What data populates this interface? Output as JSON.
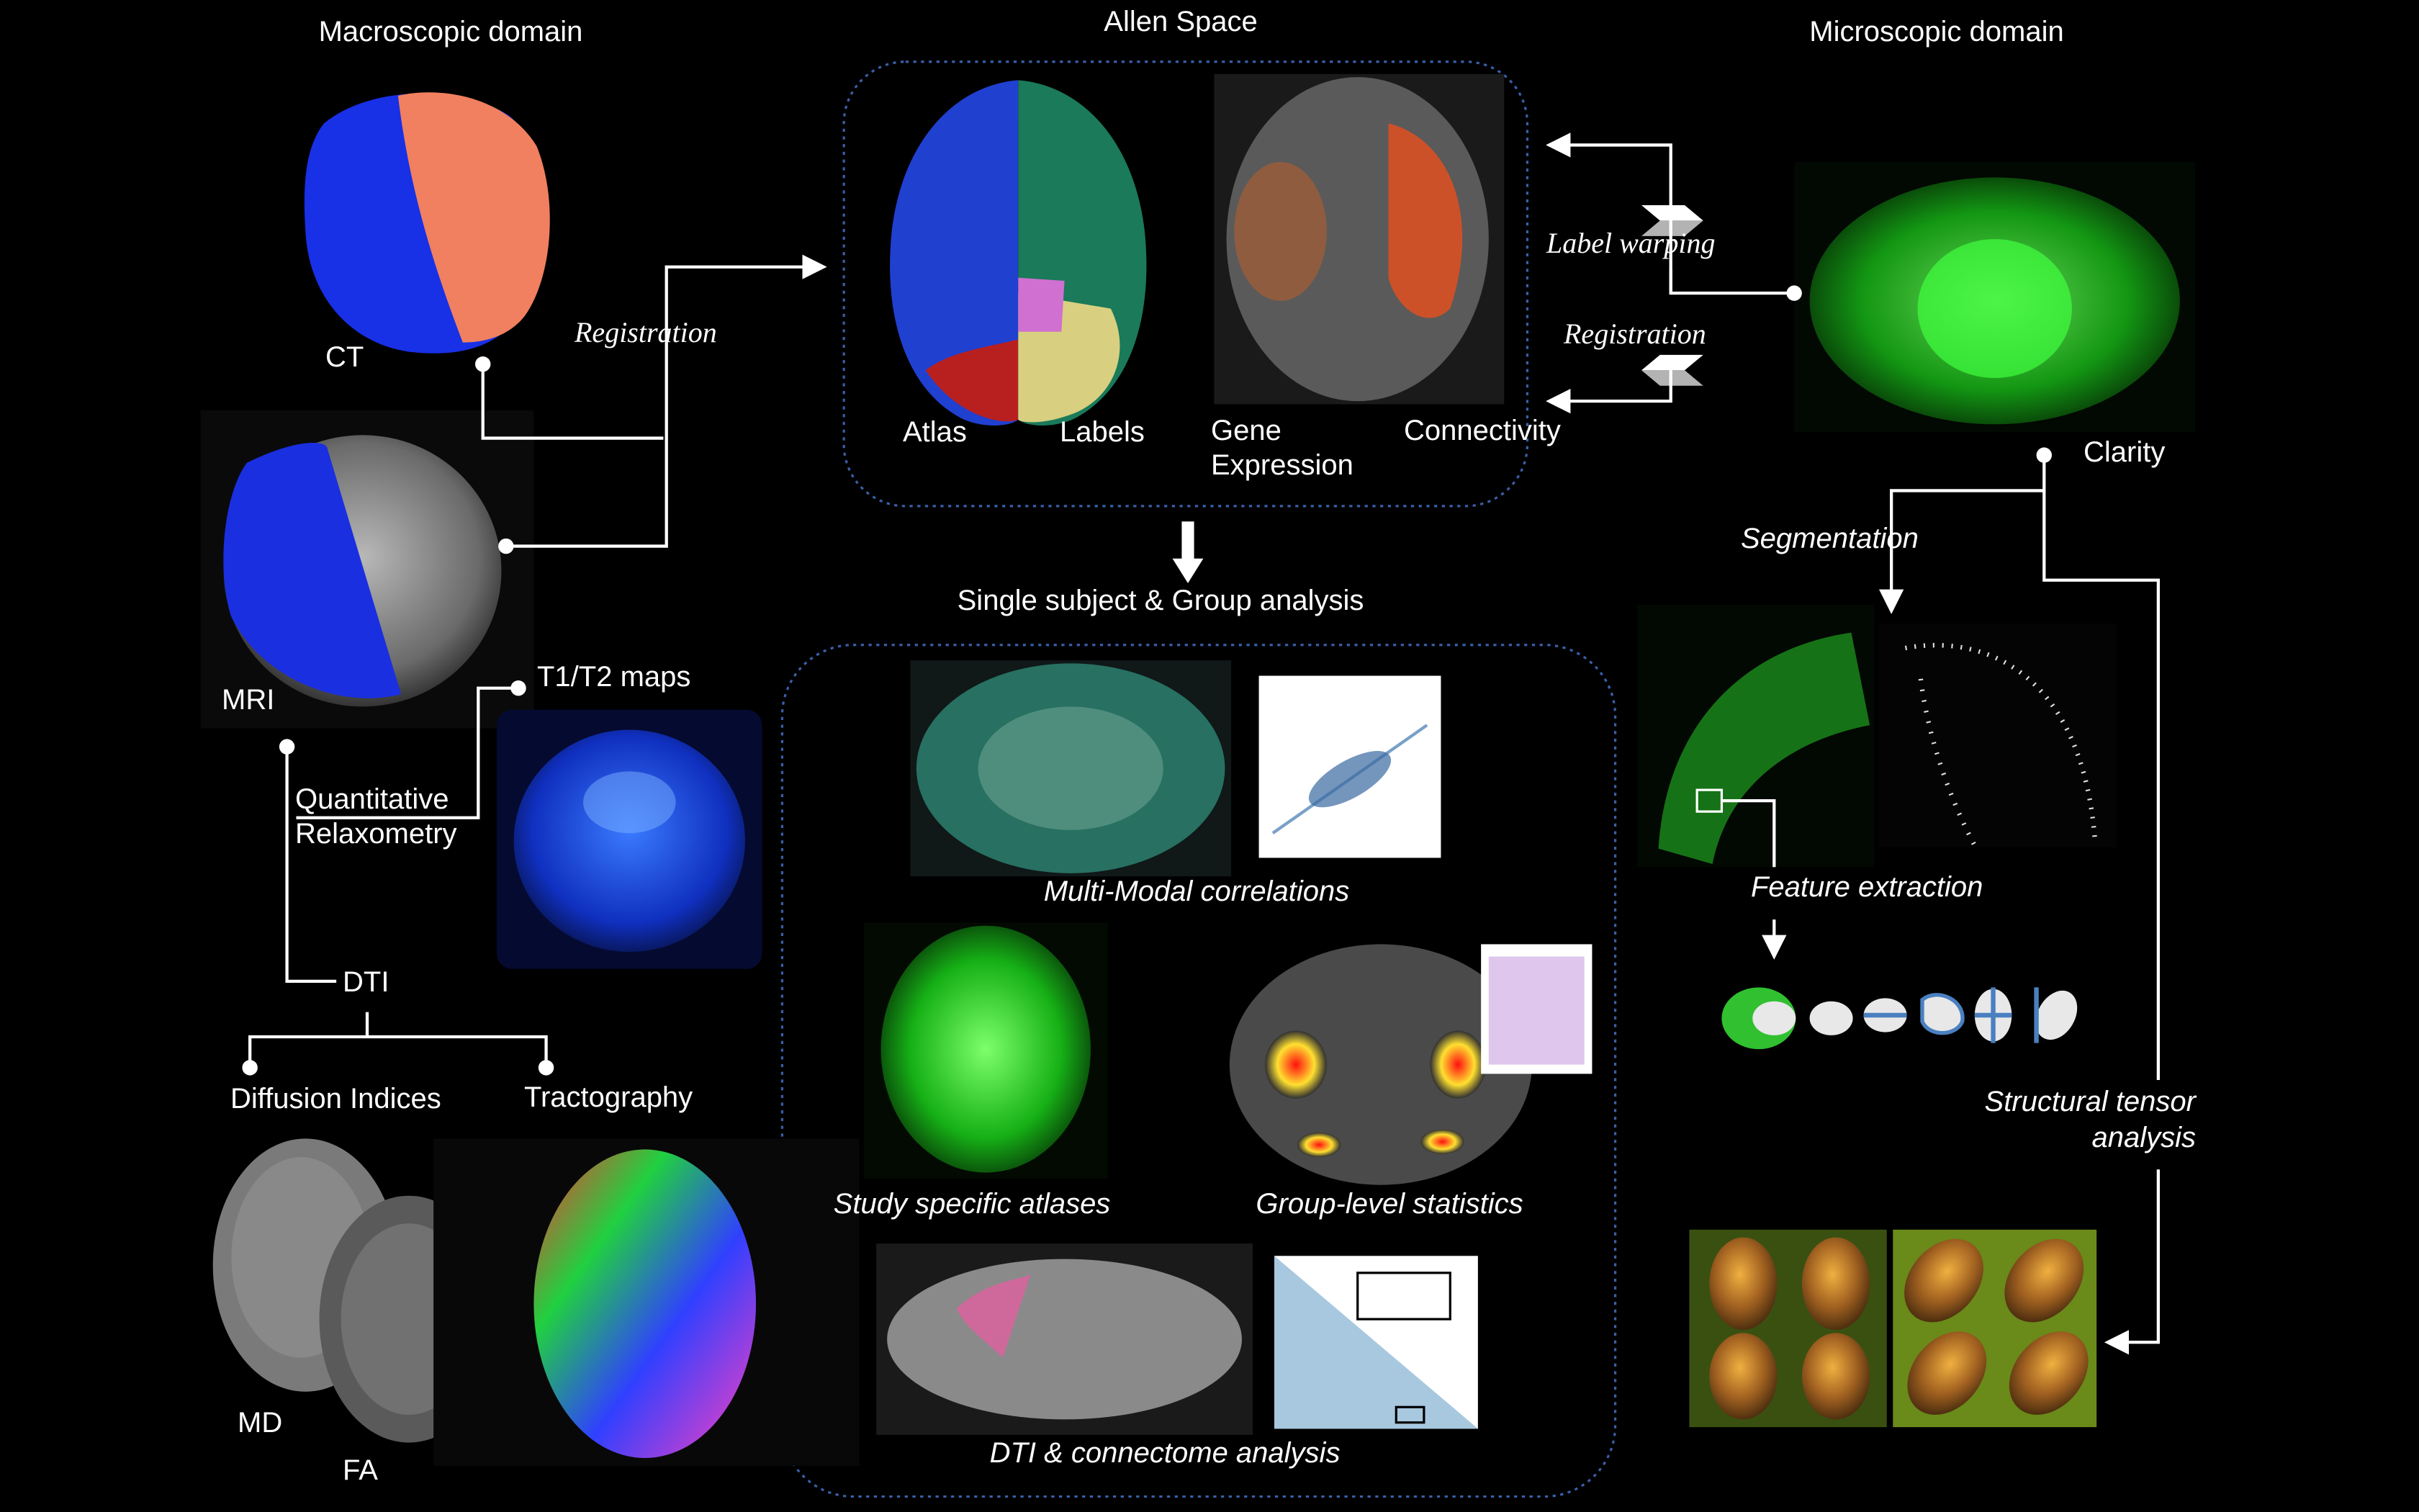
{
  "headings": {
    "macro": "Macroscopic domain",
    "allen": "Allen Space",
    "micro": "Microscopic domain",
    "analysis": "Single subject & Group analysis"
  },
  "macro": {
    "ct": "CT",
    "mri": "MRI",
    "registration": "Registration",
    "t1t2": "T1/T2 maps",
    "quant_line1": "Quantitative",
    "quant_line2": "Relaxometry",
    "dti": "DTI",
    "diffusion": "Diffusion Indices",
    "tractography": "Tractography",
    "md": "MD",
    "fa": "FA"
  },
  "allen": {
    "atlas": "Atlas",
    "labels": "Labels",
    "gene_line1": "Gene",
    "gene_line2": "Expression",
    "connectivity": "Connectivity"
  },
  "links": {
    "label_warping": "Label warping",
    "registration": "Registration"
  },
  "micro": {
    "clarity": "Clarity",
    "segmentation": "Segmentation",
    "feature": "Feature extraction",
    "tensor_line1": "Structural tensor",
    "tensor_line2": "analysis"
  },
  "analysis": {
    "multimodal": "Multi-Modal correlations",
    "atlases": "Study specific atlases",
    "group": "Group-level statistics",
    "dti": "DTI & connectome analysis"
  },
  "colors": {
    "background": "#000000",
    "dotted_border": "#3a5fa8",
    "ct_blue": "#1830e6",
    "ct_salmon": "#f08060",
    "clarity_green": "#2bd62b"
  }
}
